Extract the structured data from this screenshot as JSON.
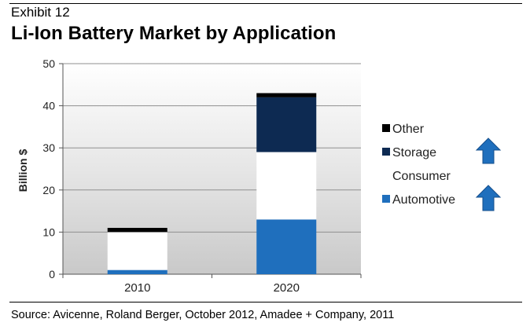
{
  "header": {
    "exhibit": "Exhibit 12",
    "title": "Li-Ion Battery Market by Application"
  },
  "footer": {
    "source": "Source: Avicenne, Roland Berger, October 2012, Amadee + Company, 2011"
  },
  "chart_data": {
    "type": "bar",
    "stacked": true,
    "categories": [
      "2010",
      "2020"
    ],
    "series": [
      {
        "name": "Automotive",
        "color": "#1f6fbd",
        "values": [
          1,
          13
        ]
      },
      {
        "name": "Consumer",
        "color": "#ffffff",
        "values": [
          9,
          16
        ]
      },
      {
        "name": "Storage",
        "color": "#0d2a52",
        "values": [
          0,
          13
        ]
      },
      {
        "name": "Other",
        "color": "#000000",
        "values": [
          1,
          1
        ]
      }
    ],
    "ylabel": "Billion $",
    "ylim": [
      0,
      50
    ],
    "yticks": [
      "0",
      "10",
      "20",
      "30",
      "40",
      "50"
    ],
    "grid": true,
    "legend_position": "right",
    "legend_order": [
      "Other",
      "Storage",
      "Consumer",
      "Automotive"
    ],
    "growth_arrows": {
      "Storage": "up-arrow-icon",
      "Automotive": "up-arrow-icon"
    },
    "arrow_color": "#1f6fbd",
    "plot_background": "gradient gray"
  }
}
